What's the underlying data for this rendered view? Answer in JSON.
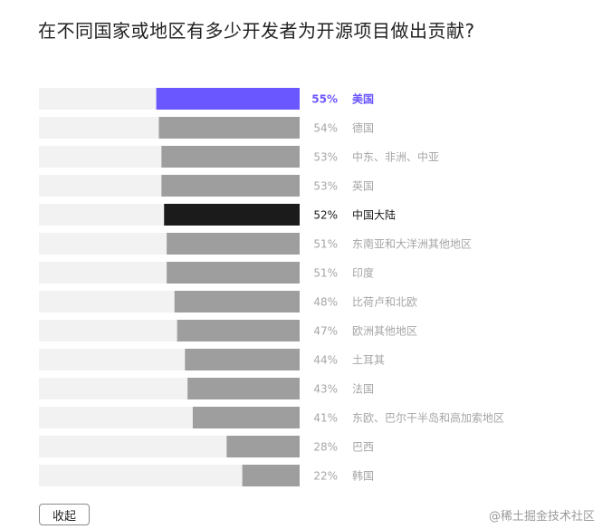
{
  "chart_data": {
    "type": "bar",
    "orientation": "horizontal",
    "title": "在不同国家或地区有多少开发者为开源项目做出贡献?",
    "categories": [
      "美国",
      "德国",
      "中东、非洲、中亚",
      "英国",
      "中国大陆",
      "东南亚和大洋洲其他地区",
      "印度",
      "比荷卢和北欧",
      "欧洲其他地区",
      "土耳其",
      "法国",
      "东欧、巴尔干半岛和高加索地区",
      "巴西",
      "韩国"
    ],
    "values": [
      55,
      54,
      53,
      53,
      52,
      51,
      51,
      48,
      47,
      44,
      43,
      41,
      28,
      22
    ],
    "value_labels": [
      "55%",
      "54%",
      "53%",
      "53%",
      "52%",
      "51%",
      "51%",
      "48%",
      "47%",
      "44%",
      "43%",
      "41%",
      "28%",
      "22%"
    ],
    "xlim": [
      0,
      100
    ],
    "highlight": [
      {
        "index": 0,
        "color": "#6b57ff"
      },
      {
        "index": 4,
        "color": "#1b1b1b"
      }
    ],
    "colors": {
      "bar": "#9e9e9e",
      "track": "#f2f2f2",
      "label": "#a6a6a6",
      "label_dark": "#1b1b1b",
      "label_accent": "#6b57ff"
    }
  },
  "footer": {
    "collapse_label": "收起",
    "watermark": "@稀土掘金技术社区"
  }
}
